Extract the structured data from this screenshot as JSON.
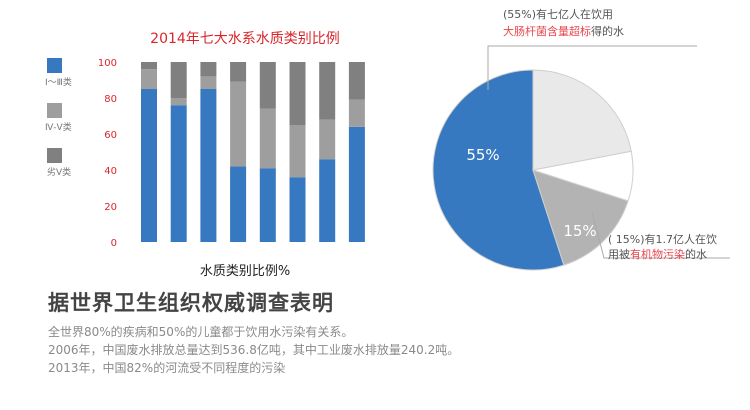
{
  "chart_data": [
    {
      "type": "bar",
      "stacked": true,
      "title": "2014年七大水系水质类别比例",
      "xlabel": "水质类别比例%",
      "ylim": [
        0,
        100
      ],
      "yticks": [
        0,
        20,
        40,
        60,
        80,
        100
      ],
      "grid": false,
      "legend_placement": "left",
      "categories": [
        "",
        "",
        "",
        "",
        "",
        "",
        "",
        ""
      ],
      "series": [
        {
          "name": "I～Ⅲ类",
          "color": "#3679c0",
          "values": [
            85,
            76,
            85,
            42,
            41,
            36,
            46,
            64
          ]
        },
        {
          "name": "Ⅳ-Ⅴ类",
          "color": "#9e9e9e",
          "values": [
            11,
            4,
            7,
            47,
            33,
            29,
            22,
            15
          ]
        },
        {
          "name": "劣Ⅴ类",
          "color": "#808080",
          "values": [
            4,
            20,
            8,
            11,
            26,
            35,
            32,
            21
          ]
        }
      ]
    },
    {
      "type": "pie",
      "slices": [
        {
          "value": 55,
          "color": "#3679c0",
          "label": "55%"
        },
        {
          "value": 15,
          "color": "#b3b3b3",
          "label": "15%"
        },
        {
          "value": 8,
          "color": "#ffffff",
          "label": ""
        },
        {
          "value": 22,
          "color": "#e9e9e9",
          "label": ""
        }
      ],
      "annotations": {
        "top": {
          "line1": "(55%)有七亿人在饮用",
          "line2_red": "大肠杆菌含量超标",
          "line2_tail": "得的水"
        },
        "bottom": {
          "line1": "( 15%)有1.7亿人在饮",
          "line2_head": "用被",
          "line2_red": "有机物污染",
          "line2_tail": "的水"
        }
      }
    }
  ],
  "text": {
    "headline": "据世界卫生组织权威调查表明",
    "bullets": [
      "全世界80%的疾病和50%的儿童都于饮用水污染有关系。",
      "2006年，中国废水排放总量达到536.8亿吨，其中工业废水排放量240.2吨。",
      "2013年，中国82%的河流受不同程度的污染"
    ]
  }
}
